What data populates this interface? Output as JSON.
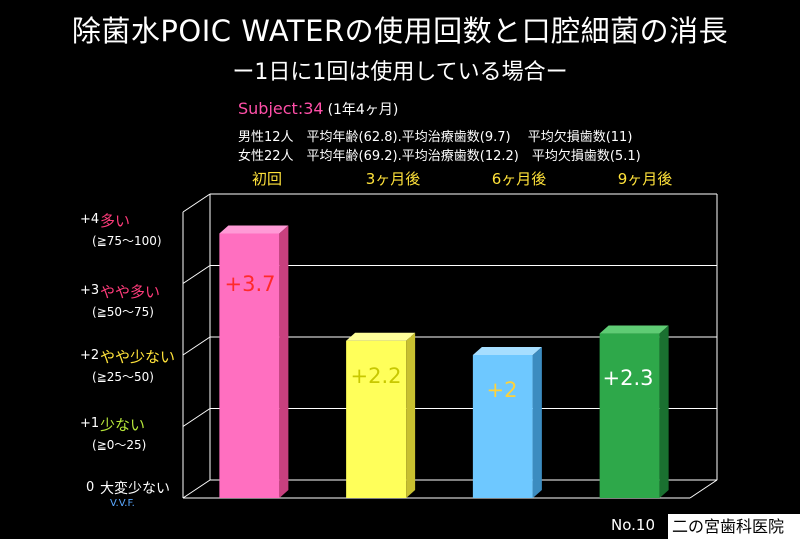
{
  "header": {
    "title": "除菌水POIC WATERの使用回数と口腔細菌の消長",
    "subtitle": "ー1日に1回は使用している場合ー",
    "subject_label": "Subject:34",
    "subject_note": "(1年4ヶ月)",
    "male_info": "男性12人　平均年齢(62.8).平均治療歯数(9.7)　 平均欠損歯数(11)",
    "female_info": "女性22人　平均年齢(69.2).平均治療歯数(12.2)　平均欠損歯数(5.1)"
  },
  "y_axis": {
    "levels": [
      {
        "num": "+4",
        "name": "多い",
        "range": "(≧75〜100)",
        "color": "#ff3b7a"
      },
      {
        "num": "+3",
        "name": "やや多い",
        "range": "(≧50〜75)",
        "color": "#ff3b7a"
      },
      {
        "num": "+2",
        "name": "やや少ない",
        "range": "(≧25〜50)",
        "color": "#ffe23a"
      },
      {
        "num": "+1",
        "name": "少ない",
        "range": "(≧0〜25)",
        "color": "#b6e63a"
      },
      {
        "num": "0",
        "name": "大変少ない",
        "range": "V.V.F.",
        "color": "#ffffff",
        "range_color": "#5aa8ff"
      }
    ]
  },
  "chart_data": {
    "type": "bar",
    "categories": [
      "初回",
      "3ヶ月後",
      "6ヶ月後",
      "9ヶ月後"
    ],
    "values": [
      3.7,
      2.2,
      2,
      2.3
    ],
    "value_labels": [
      "+3.7",
      "+2.2",
      "+2",
      "+2.3"
    ],
    "ylim": [
      0,
      4
    ],
    "grid": true,
    "colors": {
      "bars": [
        "#ff6fc0",
        "#ffff5a",
        "#6ec8ff",
        "#2ea84a"
      ],
      "bar_tops": [
        "#ff9ad6",
        "#ffff9a",
        "#a6deff",
        "#5fcc74"
      ],
      "bar_sides": [
        "#c8407e",
        "#c8c030",
        "#3c8cc0",
        "#1a7030"
      ],
      "labels": [
        "#ff2a2a",
        "#c8c800",
        "#ffd23a",
        "#ffffff"
      ]
    }
  },
  "footer": {
    "number": "No.10",
    "clinic": "二の宮歯科医院"
  }
}
